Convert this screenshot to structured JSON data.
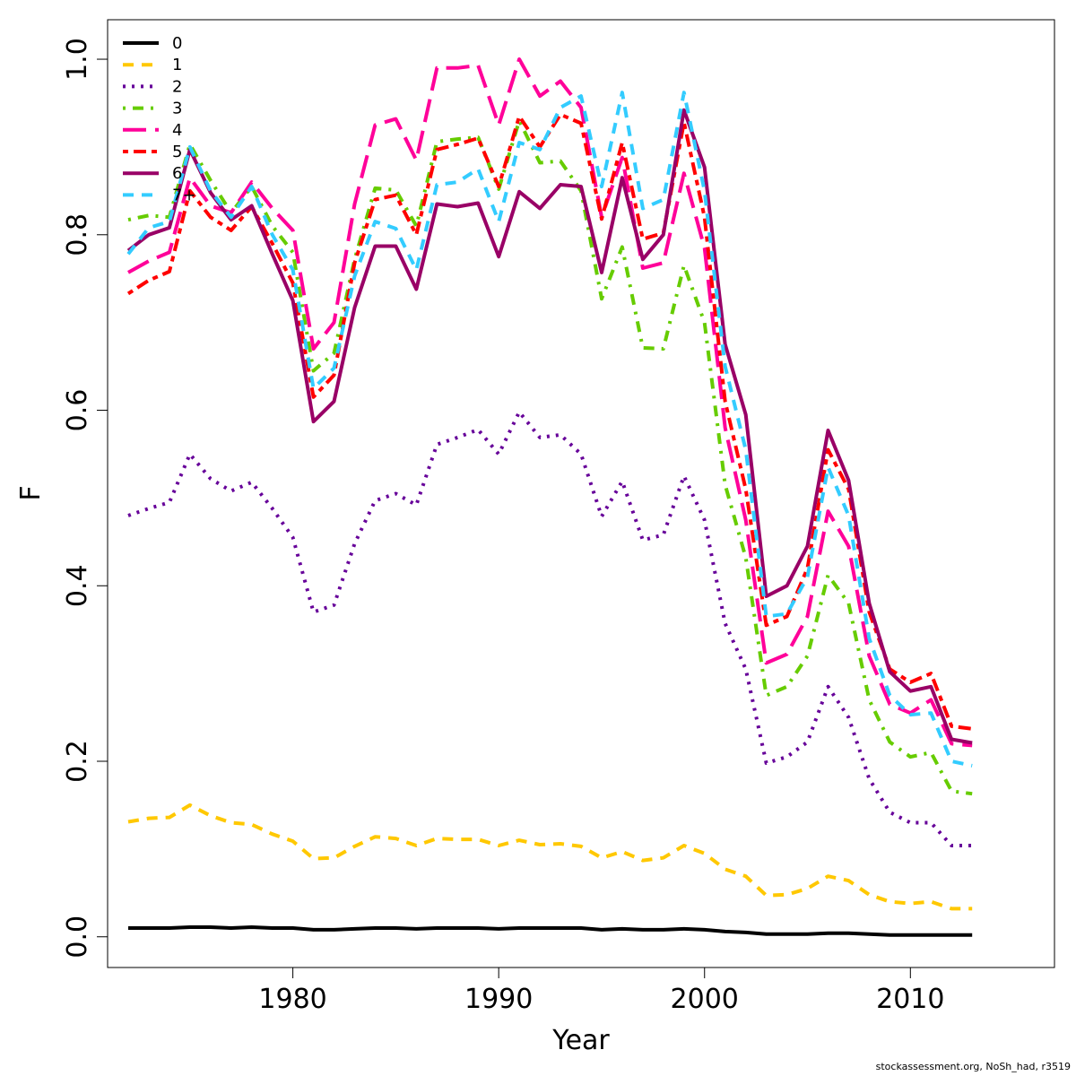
{
  "chart_data": {
    "type": "line",
    "title": "",
    "xlabel": "Year",
    "ylabel": "F",
    "xlim": [
      1971,
      2017
    ],
    "ylim": [
      -0.035,
      1.045
    ],
    "x_ticks": [
      1980,
      1990,
      2000,
      2010
    ],
    "y_ticks": [
      0.0,
      0.2,
      0.4,
      0.6,
      0.8,
      1.0
    ],
    "y_tick_labels": [
      "0.0",
      "0.2",
      "0.4",
      "0.6",
      "0.8",
      "1.0"
    ],
    "grid": false,
    "legend_position": "top-left",
    "x": [
      1972,
      1973,
      1974,
      1975,
      1976,
      1977,
      1978,
      1979,
      1980,
      1981,
      1982,
      1983,
      1984,
      1985,
      1986,
      1987,
      1988,
      1989,
      1990,
      1991,
      1992,
      1993,
      1994,
      1995,
      1996,
      1997,
      1998,
      1999,
      2000,
      2001,
      2002,
      2003,
      2004,
      2005,
      2006,
      2007,
      2008,
      2009,
      2010,
      2011,
      2012,
      2013
    ],
    "series": [
      {
        "name": "0",
        "color": "#000000",
        "dash": "solid",
        "values": [
          0.01,
          0.01,
          0.01,
          0.011,
          0.011,
          0.01,
          0.011,
          0.01,
          0.01,
          0.008,
          0.008,
          0.009,
          0.01,
          0.01,
          0.009,
          0.01,
          0.01,
          0.01,
          0.009,
          0.01,
          0.01,
          0.01,
          0.01,
          0.008,
          0.009,
          0.008,
          0.008,
          0.009,
          0.008,
          0.006,
          0.005,
          0.003,
          0.003,
          0.003,
          0.004,
          0.004,
          0.003,
          0.002,
          0.002,
          0.002,
          0.002,
          0.002
        ]
      },
      {
        "name": "1",
        "color": "#FFC800",
        "dash": "dashed",
        "values": [
          0.131,
          0.135,
          0.136,
          0.15,
          0.138,
          0.13,
          0.128,
          0.117,
          0.109,
          0.089,
          0.09,
          0.103,
          0.114,
          0.112,
          0.104,
          0.112,
          0.111,
          0.111,
          0.104,
          0.11,
          0.105,
          0.106,
          0.103,
          0.09,
          0.097,
          0.087,
          0.09,
          0.104,
          0.095,
          0.077,
          0.069,
          0.047,
          0.048,
          0.055,
          0.069,
          0.064,
          0.048,
          0.04,
          0.038,
          0.04,
          0.032,
          0.032
        ]
      },
      {
        "name": "2",
        "color": "#660099",
        "dash": "dotted",
        "values": [
          0.48,
          0.488,
          0.495,
          0.55,
          0.522,
          0.508,
          0.518,
          0.488,
          0.455,
          0.37,
          0.378,
          0.448,
          0.497,
          0.505,
          0.492,
          0.561,
          0.569,
          0.578,
          0.55,
          0.598,
          0.569,
          0.572,
          0.55,
          0.479,
          0.519,
          0.452,
          0.458,
          0.525,
          0.475,
          0.357,
          0.305,
          0.198,
          0.205,
          0.222,
          0.285,
          0.25,
          0.18,
          0.142,
          0.13,
          0.13,
          0.104,
          0.104
        ]
      },
      {
        "name": "3",
        "color": "#66CC00",
        "dash": "dotdash",
        "values": [
          0.817,
          0.822,
          0.82,
          0.903,
          0.862,
          0.825,
          0.855,
          0.81,
          0.78,
          0.645,
          0.665,
          0.772,
          0.853,
          0.851,
          0.81,
          0.906,
          0.909,
          0.911,
          0.852,
          0.93,
          0.882,
          0.884,
          0.85,
          0.727,
          0.786,
          0.671,
          0.67,
          0.765,
          0.7,
          0.515,
          0.432,
          0.275,
          0.285,
          0.32,
          0.412,
          0.38,
          0.27,
          0.222,
          0.205,
          0.21,
          0.166,
          0.163
        ]
      },
      {
        "name": "4",
        "color": "#FF0099",
        "dash": "longdash",
        "values": [
          0.757,
          0.77,
          0.78,
          0.865,
          0.833,
          0.825,
          0.86,
          0.83,
          0.805,
          0.67,
          0.7,
          0.835,
          0.925,
          0.932,
          0.885,
          0.99,
          0.99,
          0.993,
          0.925,
          1.0,
          0.958,
          0.975,
          0.945,
          0.82,
          0.888,
          0.762,
          0.768,
          0.87,
          0.785,
          0.58,
          0.475,
          0.312,
          0.322,
          0.365,
          0.485,
          0.445,
          0.32,
          0.265,
          0.255,
          0.27,
          0.22,
          0.218
        ]
      },
      {
        "name": "5",
        "color": "#FF0000",
        "dash": "twodash",
        "values": [
          0.733,
          0.748,
          0.758,
          0.85,
          0.82,
          0.805,
          0.832,
          0.79,
          0.745,
          0.615,
          0.64,
          0.768,
          0.84,
          0.845,
          0.8,
          0.897,
          0.903,
          0.91,
          0.855,
          0.935,
          0.9,
          0.937,
          0.927,
          0.818,
          0.905,
          0.795,
          0.802,
          0.928,
          0.82,
          0.61,
          0.51,
          0.355,
          0.365,
          0.42,
          0.555,
          0.51,
          0.37,
          0.305,
          0.29,
          0.3,
          0.24,
          0.237
        ]
      },
      {
        "name": "6",
        "color": "#990066",
        "dash": "solid",
        "values": [
          0.782,
          0.8,
          0.808,
          0.897,
          0.848,
          0.817,
          0.833,
          0.778,
          0.725,
          0.587,
          0.61,
          0.717,
          0.787,
          0.787,
          0.738,
          0.835,
          0.832,
          0.836,
          0.775,
          0.849,
          0.83,
          0.857,
          0.855,
          0.757,
          0.865,
          0.772,
          0.8,
          0.942,
          0.877,
          0.675,
          0.595,
          0.388,
          0.4,
          0.445,
          0.577,
          0.52,
          0.38,
          0.302,
          0.28,
          0.285,
          0.225,
          0.221
        ]
      },
      {
        "name": "7+",
        "color": "#33CCFF",
        "dash": "dashed",
        "values": [
          0.778,
          0.808,
          0.815,
          0.9,
          0.85,
          0.82,
          0.855,
          0.8,
          0.76,
          0.625,
          0.648,
          0.753,
          0.815,
          0.807,
          0.76,
          0.857,
          0.86,
          0.875,
          0.815,
          0.905,
          0.897,
          0.945,
          0.958,
          0.855,
          0.962,
          0.83,
          0.84,
          0.962,
          0.85,
          0.65,
          0.555,
          0.365,
          0.368,
          0.41,
          0.535,
          0.48,
          0.34,
          0.275,
          0.253,
          0.255,
          0.2,
          0.195
        ]
      }
    ]
  },
  "footer": "stockassessment.org, NoSh_had, r3519"
}
